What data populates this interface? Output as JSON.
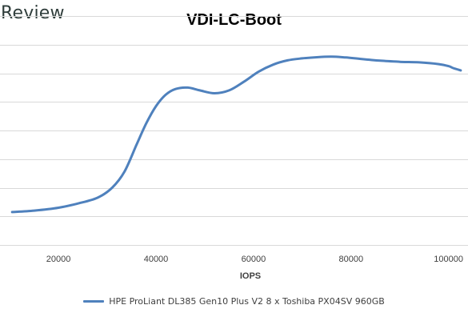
{
  "brand": {
    "text": "Review"
  },
  "chart_data": {
    "type": "line",
    "title": "VDI-LC-Boot",
    "xlabel": "IOPS",
    "ylabel": "",
    "xlim": [
      8000,
      104000
    ],
    "ylim": [
      0,
      8
    ],
    "x_ticks": [
      20000,
      40000,
      60000,
      80000,
      100000
    ],
    "x_tick_labels": [
      "20000",
      "40000",
      "60000",
      "80000",
      "100000"
    ],
    "y_gridlines": [
      1,
      2,
      3,
      4,
      5,
      6,
      7,
      8
    ],
    "y_tick_labels_visible": false,
    "grid": true,
    "legend_position": "bottom",
    "series": [
      {
        "name": "HPE ProLiant DL385 Gen10 Plus V2 8 x Toshiba PX04SV 960GB",
        "color": "#4f81bd",
        "x": [
          10500,
          15000,
          20000,
          24000,
          28000,
          31000,
          33500,
          36000,
          38000,
          40000,
          42000,
          44000,
          46500,
          49000,
          52000,
          55000,
          58000,
          61000,
          64000,
          67000,
          70000,
          73000,
          76000,
          79000,
          82000,
          86000,
          90000,
          94000,
          98000,
          100000,
          101000,
          102500
        ],
        "values": [
          1.15,
          1.2,
          1.3,
          1.45,
          1.65,
          2.0,
          2.55,
          3.5,
          4.25,
          4.85,
          5.25,
          5.45,
          5.5,
          5.4,
          5.3,
          5.4,
          5.7,
          6.05,
          6.3,
          6.45,
          6.52,
          6.56,
          6.58,
          6.55,
          6.5,
          6.44,
          6.4,
          6.38,
          6.32,
          6.25,
          6.18,
          6.1
        ]
      }
    ]
  }
}
